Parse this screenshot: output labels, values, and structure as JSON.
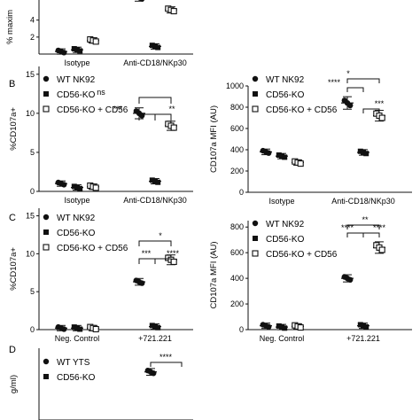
{
  "figure": {
    "panel_letters": [
      "B",
      "C",
      "D"
    ]
  },
  "chart_data": [
    {
      "id": "A_top",
      "type": "scatter",
      "title": "",
      "ylabel": "% maxim",
      "yticks": [
        "4",
        "2"
      ],
      "ytick_values": [
        4,
        2
      ],
      "ylim": [
        0,
        9.5
      ],
      "categories": [
        "Isotype",
        "Anti-CD18/NKp30"
      ],
      "series": [
        {
          "name": "",
          "marker": "circle",
          "values": [
            0.3,
            6.7
          ]
        },
        {
          "name": "",
          "marker": "square",
          "values": [
            0.5,
            0.9
          ]
        },
        {
          "name": "",
          "marker": "open-square",
          "values": [
            1.6,
            5.2
          ]
        }
      ],
      "legend": []
    },
    {
      "id": "B_left",
      "type": "scatter",
      "title": "",
      "ylabel": "%CD107a+",
      "yticks": [
        "0",
        "5",
        "10",
        "15"
      ],
      "ytick_values": [
        0,
        5,
        10,
        15
      ],
      "ylim": [
        0,
        16
      ],
      "categories": [
        "Isotype",
        "Anti-CD18/NKp30"
      ],
      "series": [
        {
          "name": "WT NK92",
          "marker": "circle",
          "values": [
            1.0,
            10.0
          ]
        },
        {
          "name": "CD56-KO",
          "marker": "square",
          "values": [
            0.5,
            1.3
          ]
        },
        {
          "name": "CD56-KO + CD56",
          "marker": "open-square",
          "values": [
            0.6,
            8.4
          ]
        }
      ],
      "significance": [
        {
          "label": "ns",
          "from": 0,
          "to": 2
        },
        {
          "label": "***",
          "from": 0,
          "to": 1
        },
        {
          "label": "**",
          "from": 1,
          "to": 2
        }
      ]
    },
    {
      "id": "B_right",
      "type": "scatter",
      "title": "",
      "ylabel": "CD107a MFI (AU)",
      "yticks": [
        "0",
        "200",
        "400",
        "600",
        "800",
        "1000"
      ],
      "ytick_values": [
        0,
        200,
        400,
        600,
        800,
        1000
      ],
      "ylim": [
        0,
        1000
      ],
      "categories": [
        "Isotype",
        "Anti-CD18/NKp30"
      ],
      "series": [
        {
          "name": "WT NK92",
          "marker": "circle",
          "values": [
            380,
            840
          ]
        },
        {
          "name": "CD56-KO",
          "marker": "square",
          "values": [
            340,
            375
          ]
        },
        {
          "name": "CD56-KO + CD56",
          "marker": "open-square",
          "values": [
            280,
            720
          ]
        }
      ],
      "significance": [
        {
          "label": "*",
          "from": 0,
          "to": 2
        },
        {
          "label": "****",
          "from": 0,
          "to": 1
        },
        {
          "label": "***",
          "from": 1,
          "to": 2
        }
      ]
    },
    {
      "id": "C_left",
      "type": "scatter",
      "title": "",
      "ylabel": "%CD107a+",
      "yticks": [
        "0",
        "5",
        "10",
        "15"
      ],
      "ytick_values": [
        0,
        5,
        10,
        15
      ],
      "ylim": [
        0,
        16
      ],
      "categories": [
        "Neg. Control",
        "+721.221"
      ],
      "series": [
        {
          "name": "WT NK92",
          "marker": "circle",
          "values": [
            0.2,
            6.3
          ]
        },
        {
          "name": "CD56-KO",
          "marker": "square",
          "values": [
            0.2,
            0.4
          ]
        },
        {
          "name": "CD56-KO + CD56",
          "marker": "open-square",
          "values": [
            0.2,
            9.2
          ]
        }
      ],
      "significance": [
        {
          "label": "*",
          "from": 0,
          "to": 2
        },
        {
          "label": "***",
          "from": 0,
          "to": 1
        },
        {
          "label": "****",
          "from": 1,
          "to": 2
        }
      ]
    },
    {
      "id": "C_right",
      "type": "scatter",
      "title": "",
      "ylabel": "CD107a MFI (AU)",
      "yticks": [
        "0",
        "200",
        "400",
        "600",
        "800"
      ],
      "ytick_values": [
        0,
        200,
        400,
        600,
        800
      ],
      "ylim": [
        0,
        850
      ],
      "categories": [
        "Neg. Control",
        "+721.221"
      ],
      "series": [
        {
          "name": "WT NK92",
          "marker": "circle",
          "values": [
            30,
            400
          ]
        },
        {
          "name": "CD56-KO",
          "marker": "square",
          "values": [
            20,
            30
          ]
        },
        {
          "name": "CD56-KO + CD56",
          "marker": "open-square",
          "values": [
            25,
            640
          ]
        }
      ],
      "significance": [
        {
          "label": "**",
          "from": 0,
          "to": 2
        },
        {
          "label": "****",
          "from": 0,
          "to": 1
        },
        {
          "label": "****",
          "from": 1,
          "to": 2
        }
      ]
    },
    {
      "id": "D",
      "type": "scatter",
      "title": "",
      "ylabel": "g/ml)",
      "yticks": [],
      "ytick_values": [],
      "ylim": [
        0,
        10
      ],
      "categories": [
        ""
      ],
      "series": [
        {
          "name": "WT YTS",
          "marker": "circle",
          "values": [
            6.7
          ]
        },
        {
          "name": "CD56-KO",
          "marker": "square",
          "values": []
        }
      ],
      "significance": [
        {
          "label": "****",
          "from": 0,
          "to": 1
        }
      ]
    }
  ]
}
